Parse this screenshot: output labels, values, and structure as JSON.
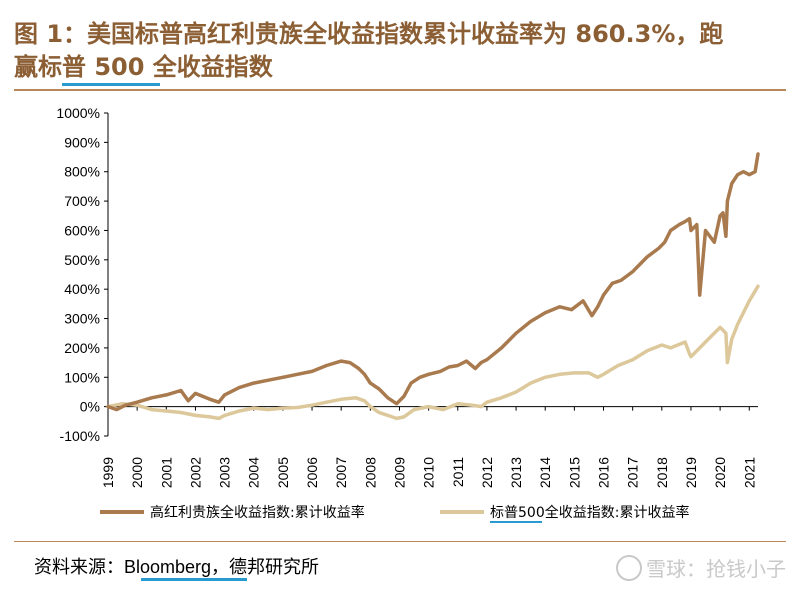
{
  "header": {
    "title_line1": "图 1：美国标普高红利贵族全收益指数累计收益率为 860.3%，跑",
    "title_line2": "赢标普 500 全收益指数"
  },
  "footer": {
    "source_prefix": "资料来源：",
    "source_brand": "Bloomberg",
    "source_suffix": "，德邦研究所",
    "watermark": "雪球：抢钱小子"
  },
  "colors": {
    "title": "#8b5e34",
    "series_dividend": "#a87a4e",
    "series_sp500": "#dcc89a",
    "highlight": "#2a9bd0"
  },
  "chart_data": {
    "type": "line",
    "title": "",
    "xlabel": "",
    "ylabel": "",
    "ylim": [
      -100,
      1000
    ],
    "xlim": [
      1999,
      2021.3
    ],
    "x_ticks": [
      "1999",
      "2000",
      "2001",
      "2002",
      "2003",
      "2004",
      "2005",
      "2006",
      "2007",
      "2008",
      "2009",
      "2010",
      "2011",
      "2012",
      "2013",
      "2014",
      "2015",
      "2016",
      "2017",
      "2018",
      "2019",
      "2020",
      "2021"
    ],
    "y_ticks": [
      "-100%",
      "0%",
      "100%",
      "200%",
      "300%",
      "400%",
      "500%",
      "600%",
      "700%",
      "800%",
      "900%",
      "1000%"
    ],
    "grid": false,
    "legend_position": "bottom",
    "series": [
      {
        "name": "高红利贵族全收益指数:累计收益率",
        "x": [
          1999.0,
          1999.3,
          1999.6,
          2000.0,
          2000.5,
          2001.0,
          2001.5,
          2001.75,
          2002.0,
          2002.5,
          2002.8,
          2003.0,
          2003.5,
          2004.0,
          2004.5,
          2005.0,
          2005.5,
          2006.0,
          2006.5,
          2007.0,
          2007.3,
          2007.6,
          2007.8,
          2008.0,
          2008.3,
          2008.6,
          2008.9,
          2009.15,
          2009.4,
          2009.7,
          2010.0,
          2010.4,
          2010.7,
          2011.0,
          2011.3,
          2011.6,
          2011.8,
          2012.0,
          2012.5,
          2013.0,
          2013.5,
          2014.0,
          2014.5,
          2014.9,
          2015.3,
          2015.6,
          2015.8,
          2016.0,
          2016.3,
          2016.6,
          2017.0,
          2017.5,
          2017.9,
          2018.1,
          2018.3,
          2018.6,
          2018.8,
          2018.95,
          2019.0,
          2019.2,
          2019.3,
          2019.5,
          2019.8,
          2020.0,
          2020.1,
          2020.2,
          2020.25,
          2020.4,
          2020.6,
          2020.8,
          2021.0,
          2021.2,
          2021.3
        ],
        "y": [
          0,
          -10,
          5,
          15,
          30,
          40,
          55,
          20,
          45,
          25,
          15,
          40,
          65,
          80,
          90,
          100,
          110,
          120,
          140,
          155,
          150,
          130,
          110,
          80,
          60,
          30,
          10,
          35,
          80,
          100,
          110,
          120,
          135,
          140,
          155,
          130,
          150,
          160,
          200,
          250,
          290,
          320,
          340,
          330,
          360,
          310,
          340,
          380,
          420,
          430,
          460,
          510,
          540,
          560,
          600,
          620,
          630,
          640,
          600,
          620,
          380,
          600,
          560,
          650,
          660,
          580,
          700,
          760,
          790,
          800,
          790,
          800,
          860.3
        ]
      },
      {
        "name": "标普500全收益指数:累计收益率",
        "x": [
          1999.0,
          1999.5,
          2000.0,
          2000.5,
          2001.0,
          2001.5,
          2002.0,
          2002.5,
          2002.8,
          2003.0,
          2003.5,
          2004.0,
          2004.5,
          2005.0,
          2005.5,
          2006.0,
          2006.5,
          2007.0,
          2007.5,
          2007.8,
          2008.0,
          2008.3,
          2008.6,
          2008.9,
          2009.15,
          2009.5,
          2010.0,
          2010.5,
          2011.0,
          2011.5,
          2011.8,
          2012.0,
          2012.5,
          2013.0,
          2013.5,
          2014.0,
          2014.5,
          2015.0,
          2015.5,
          2015.8,
          2016.0,
          2016.5,
          2017.0,
          2017.5,
          2018.0,
          2018.3,
          2018.8,
          2018.95,
          2019.0,
          2019.5,
          2020.0,
          2020.2,
          2020.25,
          2020.4,
          2020.6,
          2021.0,
          2021.3
        ],
        "y": [
          0,
          10,
          5,
          -10,
          -15,
          -20,
          -30,
          -35,
          -40,
          -30,
          -15,
          -5,
          -10,
          -5,
          -3,
          5,
          15,
          25,
          30,
          20,
          0,
          -20,
          -30,
          -40,
          -35,
          -10,
          0,
          -10,
          10,
          5,
          0,
          15,
          30,
          50,
          80,
          100,
          110,
          115,
          115,
          100,
          110,
          140,
          160,
          190,
          210,
          200,
          220,
          180,
          170,
          220,
          270,
          250,
          150,
          230,
          280,
          360,
          410
        ]
      }
    ]
  }
}
